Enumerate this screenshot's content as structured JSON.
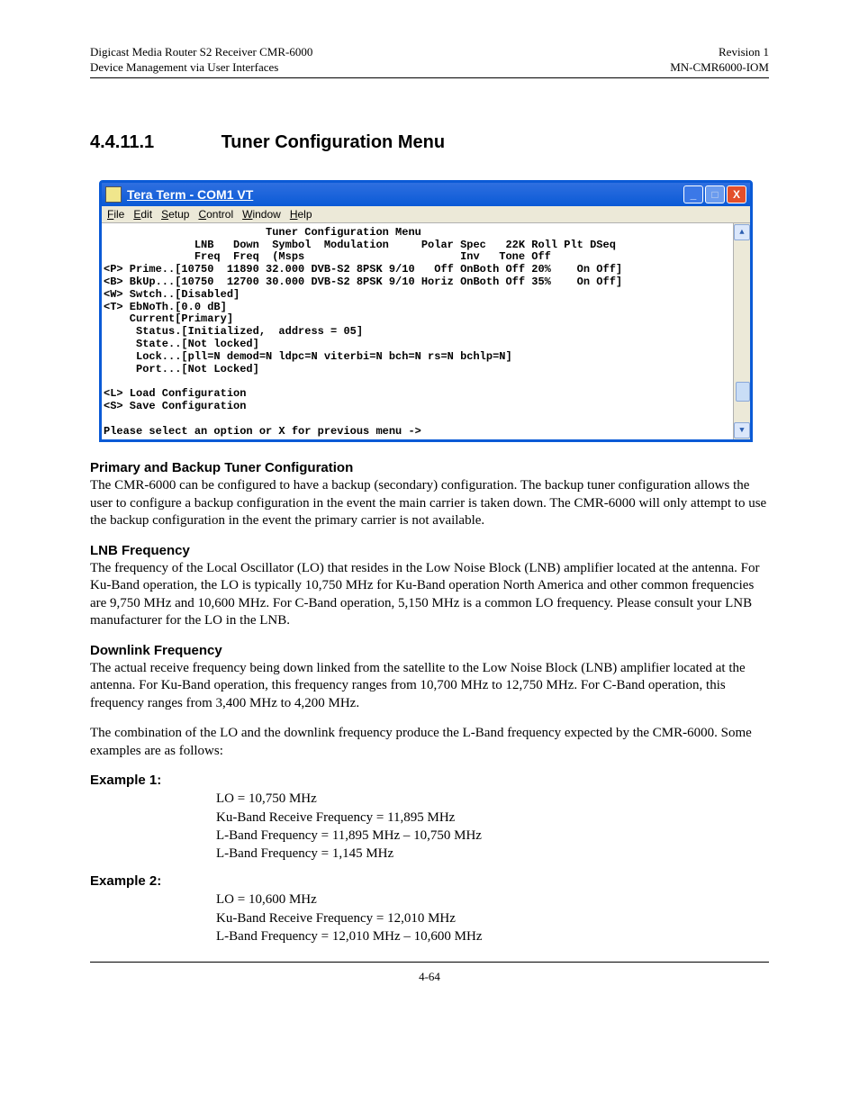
{
  "header": {
    "left_line1": "Digicast Media Router S2 Receiver CMR-6000",
    "left_line2": "Device Management via User Interfaces",
    "right_line1": "Revision 1",
    "right_line2": "MN-CMR6000-IOM"
  },
  "section": {
    "number": "4.4.11.1",
    "title": "Tuner Configuration Menu"
  },
  "terminal": {
    "window_title": "Tera Term - COM1 VT",
    "menubar": [
      "File",
      "Edit",
      "Setup",
      "Control",
      "Window",
      "Help"
    ],
    "colors": {
      "titlebar_bg": "#0a5ad6",
      "close_bg": "#e34f2b",
      "menubar_bg": "#ece9d8",
      "body_bg": "#ffffff",
      "body_fg": "#000000"
    },
    "scrollbar": {
      "thumb_top_pct": 78,
      "thumb_height_pct": 10
    },
    "lines": [
      "                         Tuner Configuration Menu",
      "              LNB   Down  Symbol  Modulation     Polar Spec   22K Roll Plt DSeq",
      "              Freq  Freq  (Msps                        Inv   Tone Off",
      "<P> Prime..[10750  11890 32.000 DVB-S2 8PSK 9/10   Off OnBoth Off 20%    On Off]",
      "<B> BkUp...[10750  12700 30.000 DVB-S2 8PSK 9/10 Horiz OnBoth Off 35%    On Off]",
      "<W> Swtch..[Disabled]",
      "<T> EbNoTh.[0.0 dB]",
      "    Current[Primary]",
      "     Status.[Initialized,  address = 05]",
      "     State..[Not locked]",
      "     Lock...[pll=N demod=N ldpc=N viterbi=N bch=N rs=N bchlp=N]",
      "     Port...[Not Locked]",
      "",
      "<L> Load Configuration",
      "<S> Save Configuration",
      "",
      "Please select an option or X for previous menu ->"
    ]
  },
  "body": {
    "h_primary": "Primary and Backup Tuner Configuration",
    "p_primary": "The CMR-6000 can be configured to have a backup (secondary) configuration.  The backup tuner configuration allows the user to configure a backup configuration in the event the main carrier is taken down.  The CMR-6000 will only attempt to use the backup configuration in the event the primary carrier is not available.",
    "h_lnb": "LNB Frequency",
    "p_lnb": "The frequency of the Local Oscillator (LO) that resides in the Low Noise Block (LNB) amplifier located at the antenna.  For Ku-Band operation, the LO is typically 10,750 MHz for Ku-Band operation North America and other common frequencies are 9,750 MHz and 10,600 MHz.  For C-Band operation, 5,150 MHz is a common LO frequency.  Please consult your LNB manufacturer for the LO in the LNB.",
    "h_down": "Downlink Frequency",
    "p_down": "The actual receive frequency being down linked from the satellite to the Low Noise Block (LNB) amplifier located at the antenna.  For Ku-Band operation, this frequency ranges from 10,700 MHz to 12,750 MHz.  For C-Band operation, this frequency ranges from 3,400 MHz to 4,200 MHz.",
    "p_combo": "The combination of the LO and the downlink frequency produce the L-Band frequency expected by the CMR-6000. Some examples are as follows:",
    "h_ex1": "Example 1:",
    "ex1_lines": [
      "LO = 10,750 MHz",
      "Ku-Band Receive Frequency = 11,895 MHz",
      "L-Band Frequency = 11,895 MHz – 10,750 MHz",
      "L-Band Frequency = 1,145 MHz"
    ],
    "h_ex2": "Example 2:",
    "ex2_lines": [
      "LO = 10,600 MHz",
      "Ku-Band Receive Frequency = 12,010 MHz",
      "L-Band Frequency = 12,010 MHz – 10,600 MHz"
    ]
  },
  "footer": {
    "page_number": "4-64"
  }
}
